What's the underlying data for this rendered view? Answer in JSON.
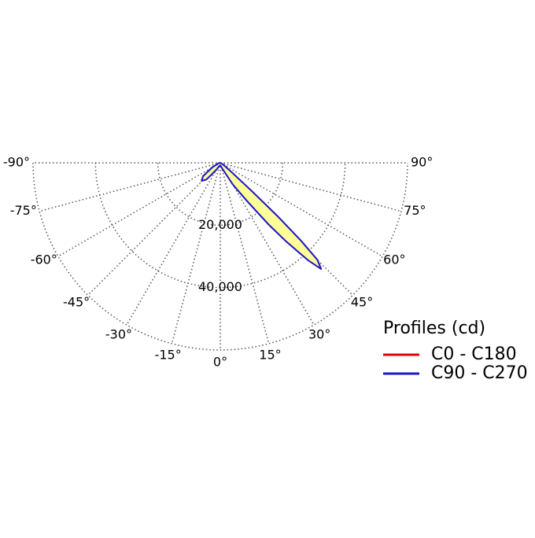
{
  "chart_data": {
    "type": "polar",
    "theta_ticks": [
      {
        "value": -90,
        "label": "-90°"
      },
      {
        "value": -75,
        "label": "-75°"
      },
      {
        "value": -60,
        "label": "-60°"
      },
      {
        "value": -45,
        "label": "-45°"
      },
      {
        "value": -30,
        "label": "-30°"
      },
      {
        "value": -15,
        "label": "-15°"
      },
      {
        "value": 0,
        "label": "0°"
      },
      {
        "value": 15,
        "label": "15°"
      },
      {
        "value": 30,
        "label": "30°"
      },
      {
        "value": 45,
        "label": "45°"
      },
      {
        "value": 60,
        "label": "60°"
      },
      {
        "value": 75,
        "label": "75°"
      },
      {
        "value": 90,
        "label": "90°"
      }
    ],
    "rlim": [
      0,
      60000
    ],
    "rticks": [
      {
        "value": 20000,
        "label": "20,000"
      },
      {
        "value": 40000,
        "label": "40,000"
      }
    ],
    "grid": true,
    "legend_title": "Profiles (cd)",
    "x": [
      -90,
      -75,
      -60,
      -52,
      -46,
      -40,
      -32,
      -20,
      0,
      20,
      30,
      35,
      38,
      40,
      42,
      43.5,
      45,
      46,
      47,
      48,
      50,
      55,
      60,
      75,
      90
    ],
    "series": [
      {
        "name": "C0 - C180",
        "color": "#e00000",
        "fill": null,
        "values": [
          0,
          500,
          3000,
          7000,
          8300,
          7000,
          3000,
          1200,
          800,
          2000,
          8000,
          15000,
          25000,
          33000,
          42000,
          46900,
          44000,
          36000,
          25000,
          14000,
          5000,
          1500,
          500,
          0,
          0
        ]
      },
      {
        "name": "C90 - C270",
        "color": "#1a1acc",
        "fill": "#ffff99",
        "values": [
          0,
          500,
          3000,
          7000,
          8300,
          7000,
          3000,
          1200,
          800,
          2000,
          8000,
          15000,
          25000,
          33000,
          42000,
          46900,
          44000,
          36000,
          25000,
          14000,
          5000,
          1500,
          500,
          0,
          0
        ]
      }
    ]
  }
}
